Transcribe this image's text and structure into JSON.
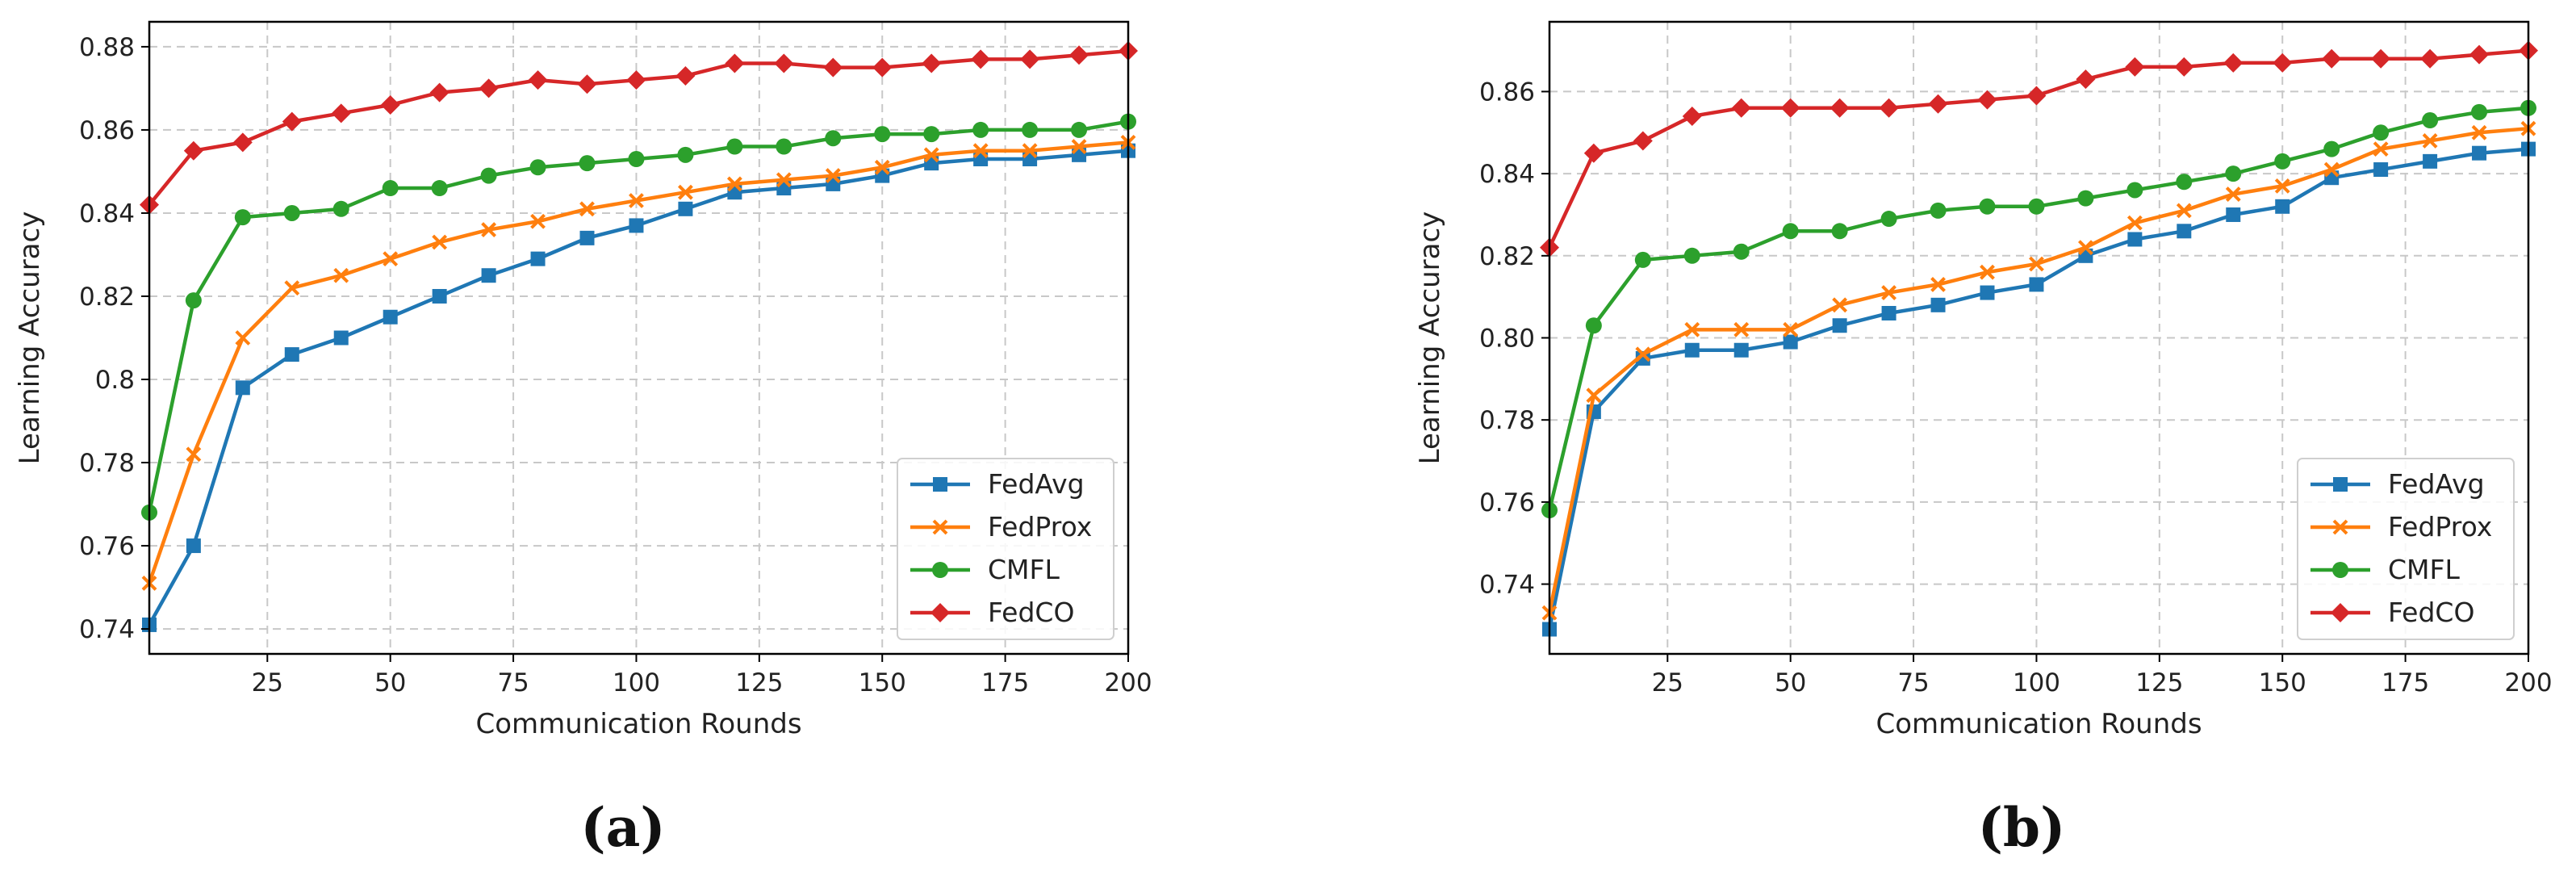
{
  "series_styles": [
    {
      "name": "FedAvg",
      "color": "#1f77b4",
      "marker": "square"
    },
    {
      "name": "FedProx",
      "color": "#ff7f0e",
      "marker": "x"
    },
    {
      "name": "CMFL",
      "color": "#2ca02c",
      "marker": "circle"
    },
    {
      "name": "FedCO",
      "color": "#d62728",
      "marker": "diamond"
    }
  ],
  "chart_data": [
    {
      "type": "line",
      "caption": "(a)",
      "xlabel": "Communication Rounds",
      "ylabel": "Learning Accuracy",
      "xlim": [
        1,
        200
      ],
      "ylim": [
        0.734,
        0.886
      ],
      "xticks": [
        25,
        50,
        75,
        100,
        125,
        150,
        175,
        200
      ],
      "yticks": [
        0.74,
        0.76,
        0.78,
        0.8,
        0.82,
        0.84,
        0.86,
        0.88
      ],
      "ytick_labels": [
        "0.74",
        "0.76",
        "0.78",
        "0.8",
        "0.82",
        "0.84",
        "0.86",
        "0.88"
      ],
      "legend_location": "lower-right",
      "grid": true,
      "x": [
        1,
        10,
        20,
        30,
        40,
        50,
        60,
        70,
        80,
        90,
        100,
        110,
        120,
        130,
        140,
        150,
        160,
        170,
        180,
        190,
        200
      ],
      "series": [
        {
          "name": "FedAvg",
          "values": [
            0.741,
            0.76,
            0.798,
            0.806,
            0.81,
            0.815,
            0.82,
            0.825,
            0.829,
            0.834,
            0.837,
            0.841,
            0.845,
            0.846,
            0.847,
            0.849,
            0.852,
            0.853,
            0.853,
            0.854,
            0.855
          ]
        },
        {
          "name": "FedProx",
          "values": [
            0.751,
            0.782,
            0.81,
            0.822,
            0.825,
            0.829,
            0.833,
            0.836,
            0.838,
            0.841,
            0.843,
            0.845,
            0.847,
            0.848,
            0.849,
            0.851,
            0.854,
            0.855,
            0.855,
            0.856,
            0.857
          ]
        },
        {
          "name": "CMFL",
          "values": [
            0.768,
            0.819,
            0.839,
            0.84,
            0.841,
            0.846,
            0.846,
            0.849,
            0.851,
            0.852,
            0.853,
            0.854,
            0.856,
            0.856,
            0.858,
            0.859,
            0.859,
            0.86,
            0.86,
            0.86,
            0.862
          ]
        },
        {
          "name": "FedCO",
          "values": [
            0.842,
            0.855,
            0.857,
            0.862,
            0.864,
            0.866,
            0.869,
            0.87,
            0.872,
            0.871,
            0.872,
            0.873,
            0.876,
            0.876,
            0.875,
            0.875,
            0.876,
            0.877,
            0.877,
            0.878,
            0.879
          ]
        }
      ]
    },
    {
      "type": "line",
      "caption": "(b)",
      "xlabel": "Communication Rounds",
      "ylabel": "Learning Accuracy",
      "xlim": [
        1,
        200
      ],
      "ylim": [
        0.723,
        0.877
      ],
      "xticks": [
        25,
        50,
        75,
        100,
        125,
        150,
        175,
        200
      ],
      "yticks": [
        0.74,
        0.76,
        0.78,
        0.8,
        0.82,
        0.84,
        0.86
      ],
      "ytick_labels": [
        "0.74",
        "0.76",
        "0.78",
        "0.80",
        "0.82",
        "0.84",
        "0.86"
      ],
      "legend_location": "lower-right",
      "grid": true,
      "x": [
        1,
        10,
        20,
        30,
        40,
        50,
        60,
        70,
        80,
        90,
        100,
        110,
        120,
        130,
        140,
        150,
        160,
        170,
        180,
        190,
        200
      ],
      "series": [
        {
          "name": "FedAvg",
          "values": [
            0.729,
            0.782,
            0.795,
            0.797,
            0.797,
            0.799,
            0.803,
            0.806,
            0.808,
            0.811,
            0.813,
            0.82,
            0.824,
            0.826,
            0.83,
            0.832,
            0.839,
            0.841,
            0.843,
            0.845,
            0.846
          ]
        },
        {
          "name": "FedProx",
          "values": [
            0.733,
            0.786,
            0.796,
            0.802,
            0.802,
            0.802,
            0.808,
            0.811,
            0.813,
            0.816,
            0.818,
            0.822,
            0.828,
            0.831,
            0.835,
            0.837,
            0.841,
            0.846,
            0.848,
            0.85,
            0.851
          ]
        },
        {
          "name": "CMFL",
          "values": [
            0.758,
            0.803,
            0.819,
            0.82,
            0.821,
            0.826,
            0.826,
            0.829,
            0.831,
            0.832,
            0.832,
            0.834,
            0.836,
            0.838,
            0.84,
            0.843,
            0.846,
            0.85,
            0.853,
            0.855,
            0.856
          ]
        },
        {
          "name": "FedCO",
          "values": [
            0.822,
            0.845,
            0.848,
            0.854,
            0.856,
            0.856,
            0.856,
            0.856,
            0.857,
            0.858,
            0.859,
            0.863,
            0.866,
            0.866,
            0.867,
            0.867,
            0.868,
            0.868,
            0.868,
            0.869,
            0.87
          ]
        }
      ]
    }
  ]
}
